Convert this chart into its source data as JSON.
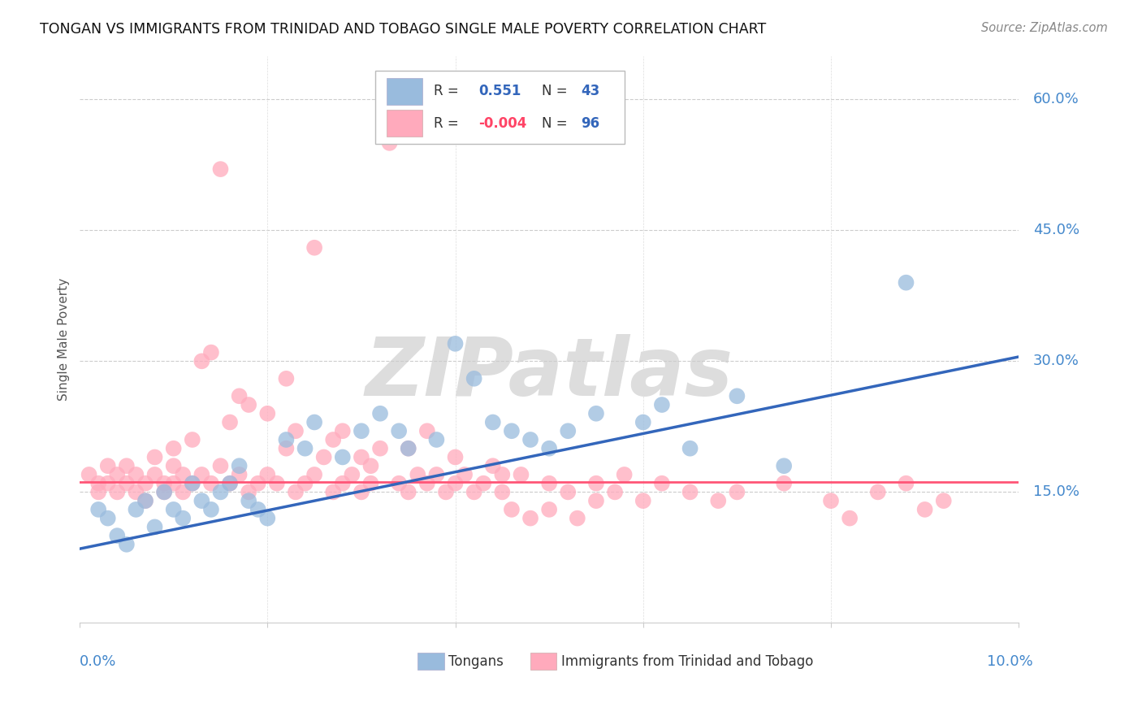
{
  "title": "TONGAN VS IMMIGRANTS FROM TRINIDAD AND TOBAGO SINGLE MALE POVERTY CORRELATION CHART",
  "source": "Source: ZipAtlas.com",
  "ylabel": "Single Male Poverty",
  "ylim": [
    0.0,
    0.65
  ],
  "xlim": [
    0.0,
    0.1
  ],
  "legend_R_tongan": "0.551",
  "legend_N_tongan": "43",
  "legend_R_tt": "-0.004",
  "legend_N_tt": "96",
  "blue_color": "#99BBDD",
  "pink_color": "#FFAABC",
  "line_blue": "#3366BB",
  "line_pink": "#FF5577",
  "watermark": "ZIPatlas",
  "blue_line_y0": 0.085,
  "blue_line_y1": 0.305,
  "pink_line_y": 0.162,
  "ytick_vals": [
    0.15,
    0.3,
    0.45,
    0.6
  ],
  "ytick_labels": [
    "15.0%",
    "30.0%",
    "45.0%",
    "60.0%"
  ]
}
